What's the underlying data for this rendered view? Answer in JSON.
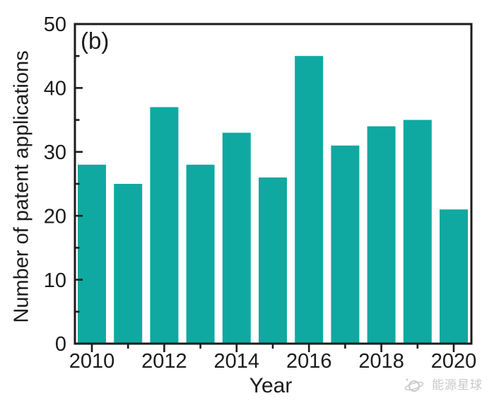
{
  "chart_data": {
    "type": "bar",
    "panel_label": "(b)",
    "title": "",
    "xlabel": "Year",
    "ylabel": "Number of  patent applications",
    "categories": [
      "2010",
      "2011",
      "2012",
      "2013",
      "2014",
      "2015",
      "2016",
      "2017",
      "2018",
      "2019",
      "2020"
    ],
    "values": [
      28,
      25,
      37,
      28,
      33,
      26,
      45,
      31,
      34,
      35,
      21
    ],
    "ylim": [
      0,
      50
    ],
    "yticks_major": [
      0,
      10,
      20,
      30,
      40,
      50
    ],
    "yticks_minor": [
      5,
      15,
      25,
      35,
      45
    ],
    "xticks_major": [
      "2010",
      "2012",
      "2014",
      "2016",
      "2018",
      "2020"
    ],
    "xticks_minor": [
      "2011",
      "2013",
      "2015",
      "2017",
      "2019"
    ],
    "grid": false,
    "legend": null,
    "bar_color": "#0fa9a2",
    "axis_color": "#1b1b1b"
  },
  "watermark": {
    "icon": "planet-icon",
    "text": "能源星球",
    "color": "#c8c8c8"
  }
}
